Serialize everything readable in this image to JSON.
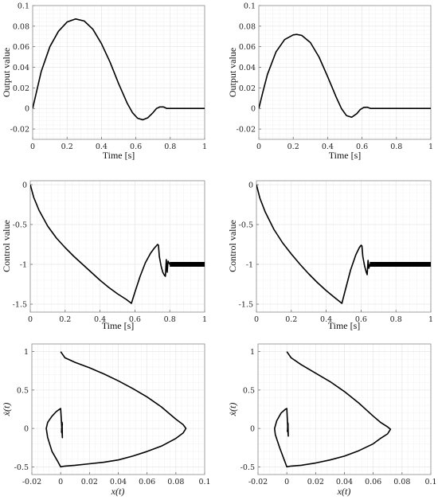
{
  "chart_data": [
    {
      "id": "out-left",
      "type": "line",
      "xlabel": "Time [s]",
      "ylabel": "Output value",
      "xlim": [
        0,
        1
      ],
      "ylim": [
        -0.03,
        0.1
      ],
      "xticks": [
        0,
        0.2,
        0.4,
        0.6,
        0.8,
        1
      ],
      "xtick_labels": [
        "0",
        "0.2",
        "0.4",
        "0.6",
        "0.8",
        "1"
      ],
      "yticks": [
        -0.02,
        0,
        0.02,
        0.04,
        0.06,
        0.08,
        0.1
      ],
      "ytick_labels": [
        "-0.02",
        "0",
        "0.02",
        "0.04",
        "0.06",
        "0.08",
        "0.1"
      ],
      "grid": true,
      "x": [
        0,
        0.025,
        0.05,
        0.1,
        0.15,
        0.2,
        0.25,
        0.3,
        0.35,
        0.4,
        0.45,
        0.5,
        0.55,
        0.58,
        0.61,
        0.64,
        0.67,
        0.7,
        0.72,
        0.74,
        0.76,
        0.78,
        0.8,
        0.9,
        1.0
      ],
      "y": [
        0,
        0.018,
        0.036,
        0.06,
        0.075,
        0.084,
        0.087,
        0.085,
        0.077,
        0.063,
        0.045,
        0.024,
        0.005,
        -0.004,
        -0.0095,
        -0.011,
        -0.009,
        -0.004,
        0.0,
        0.0015,
        0.0015,
        0.0,
        0.0,
        0.0,
        0.0
      ]
    },
    {
      "id": "out-right",
      "type": "line",
      "xlabel": "Time [s]",
      "ylabel": "Output value",
      "xlim": [
        0,
        1
      ],
      "ylim": [
        -0.03,
        0.1
      ],
      "xticks": [
        0,
        0.2,
        0.4,
        0.6,
        0.8,
        1
      ],
      "xtick_labels": [
        "0",
        "0.2",
        "0.4",
        "0.6",
        "0.8",
        "1"
      ],
      "yticks": [
        -0.02,
        0,
        0.02,
        0.04,
        0.06,
        0.08,
        0.1
      ],
      "ytick_labels": [
        "-0.02",
        "0",
        "0.02",
        "0.04",
        "0.06",
        "0.08",
        "0.1"
      ],
      "grid": true,
      "x": [
        0,
        0.025,
        0.05,
        0.1,
        0.15,
        0.2,
        0.22,
        0.25,
        0.3,
        0.35,
        0.4,
        0.45,
        0.48,
        0.51,
        0.54,
        0.57,
        0.59,
        0.61,
        0.63,
        0.65,
        0.8,
        1.0
      ],
      "y": [
        0,
        0.017,
        0.033,
        0.055,
        0.067,
        0.0715,
        0.072,
        0.071,
        0.064,
        0.05,
        0.031,
        0.011,
        0.0,
        -0.007,
        -0.0085,
        -0.005,
        -0.001,
        0.001,
        0.0012,
        0.0,
        0.0,
        0.0
      ]
    },
    {
      "id": "ctrl-left",
      "type": "line",
      "xlabel": "Time [s]",
      "ylabel": "Control value",
      "xlim": [
        0,
        1
      ],
      "ylim": [
        -1.6,
        0.05
      ],
      "xticks": [
        0,
        0.2,
        0.4,
        0.6,
        0.8,
        1
      ],
      "xtick_labels": [
        "0",
        "0.2",
        "0.4",
        "0.6",
        "0.8",
        "1"
      ],
      "yticks": [
        -1.5,
        -1,
        -0.5,
        0
      ],
      "ytick_labels": [
        "-1.5",
        "-1",
        "-0.5",
        "0"
      ],
      "grid": true,
      "x": [
        0,
        0.02,
        0.05,
        0.1,
        0.15,
        0.2,
        0.25,
        0.3,
        0.35,
        0.4,
        0.45,
        0.5,
        0.55,
        0.58,
        0.6,
        0.63,
        0.66,
        0.69,
        0.71,
        0.73,
        0.735,
        0.74,
        0.75,
        0.76,
        0.77,
        0.775,
        0.78,
        0.785,
        0.79,
        0.8,
        1.0
      ],
      "y": [
        0,
        -0.16,
        -0.32,
        -0.52,
        -0.67,
        -0.79,
        -0.9,
        -1.0,
        -1.1,
        -1.2,
        -1.29,
        -1.37,
        -1.44,
        -1.49,
        -1.35,
        -1.15,
        -0.98,
        -0.86,
        -0.8,
        -0.75,
        -0.76,
        -0.9,
        -1.02,
        -1.1,
        -1.14,
        -1.15,
        -0.94,
        -1.1,
        -0.96,
        -1.0,
        -1.0
      ]
    },
    {
      "id": "ctrl-right",
      "type": "line",
      "xlabel": "Time [s]",
      "ylabel": "Control value",
      "xlim": [
        0,
        1
      ],
      "ylim": [
        -1.6,
        0.05
      ],
      "xticks": [
        0,
        0.2,
        0.4,
        0.6,
        0.8,
        1
      ],
      "xtick_labels": [
        "0",
        "0.2",
        "0.4",
        "0.6",
        "0.8",
        "1"
      ],
      "yticks": [
        -1.5,
        -1,
        -0.5,
        0
      ],
      "ytick_labels": [
        "-1.5",
        "-1",
        "-0.5",
        "0"
      ],
      "grid": true,
      "x": [
        0,
        0.02,
        0.05,
        0.1,
        0.15,
        0.2,
        0.25,
        0.3,
        0.35,
        0.4,
        0.45,
        0.49,
        0.51,
        0.54,
        0.57,
        0.59,
        0.6,
        0.605,
        0.61,
        0.62,
        0.63,
        0.635,
        0.64,
        0.645,
        0.65,
        1.0
      ],
      "y": [
        0,
        -0.17,
        -0.34,
        -0.56,
        -0.73,
        -0.87,
        -1.0,
        -1.12,
        -1.23,
        -1.33,
        -1.42,
        -1.49,
        -1.32,
        -1.07,
        -0.88,
        -0.79,
        -0.76,
        -0.77,
        -0.9,
        -1.02,
        -1.1,
        -1.13,
        -0.95,
        -1.05,
        -1.0,
        -1.0
      ]
    },
    {
      "id": "phase-left",
      "type": "line",
      "xlabel": "x(t)",
      "ylabel": "ẋ(t)",
      "xlim": [
        -0.02,
        0.1
      ],
      "ylim": [
        -0.6,
        1.1
      ],
      "xticks": [
        -0.02,
        0,
        0.02,
        0.04,
        0.06,
        0.08,
        0.1
      ],
      "xtick_labels": [
        "-0.02",
        "0",
        "0.02",
        "0.04",
        "0.06",
        "0.08",
        "0.1"
      ],
      "yticks": [
        -0.5,
        0,
        0.5,
        1
      ],
      "ytick_labels": [
        "-0.5",
        "0",
        "0.5",
        "1"
      ],
      "grid": true,
      "x": [
        0,
        0.003,
        0.01,
        0.02,
        0.03,
        0.04,
        0.05,
        0.06,
        0.07,
        0.08,
        0.085,
        0.087,
        0.085,
        0.08,
        0.07,
        0.06,
        0.05,
        0.04,
        0.03,
        0.02,
        0.01,
        0.003,
        0,
        -0.002,
        -0.006,
        -0.009,
        -0.01,
        -0.009,
        -0.006,
        -0.003,
        0.0,
        0.0005,
        0.0012,
        0.001,
        0.0006,
        0.0012,
        0.0008,
        0.0005
      ],
      "y": [
        1.0,
        0.92,
        0.86,
        0.79,
        0.71,
        0.62,
        0.52,
        0.41,
        0.28,
        0.12,
        0.05,
        0.0,
        -0.06,
        -0.13,
        -0.23,
        -0.3,
        -0.36,
        -0.41,
        -0.44,
        -0.46,
        -0.48,
        -0.49,
        -0.5,
        -0.43,
        -0.3,
        -0.12,
        0.0,
        0.08,
        0.16,
        0.22,
        0.26,
        0.1,
        -0.12,
        0.08,
        -0.05,
        0.06,
        -0.02,
        0.0
      ]
    },
    {
      "id": "phase-right",
      "type": "line",
      "xlabel": "x(t)",
      "ylabel": "ẋ(t)",
      "xlim": [
        -0.02,
        0.1
      ],
      "ylim": [
        -0.6,
        1.1
      ],
      "xticks": [
        -0.02,
        0,
        0.02,
        0.04,
        0.06,
        0.08,
        0.1
      ],
      "xtick_labels": [
        "-0.02",
        "0",
        "0.02",
        "0.04",
        "0.06",
        "0.08",
        "0.1"
      ],
      "yticks": [
        -0.5,
        0,
        0.5,
        1
      ],
      "ytick_labels": [
        "-0.5",
        "0",
        "0.5",
        "1"
      ],
      "grid": true,
      "x": [
        0,
        0.003,
        0.01,
        0.02,
        0.03,
        0.04,
        0.05,
        0.06,
        0.065,
        0.07,
        0.072,
        0.07,
        0.065,
        0.06,
        0.05,
        0.04,
        0.03,
        0.02,
        0.01,
        0.003,
        0,
        -0.002,
        -0.005,
        -0.008,
        -0.0085,
        -0.007,
        -0.004,
        -0.001,
        0.0,
        0.0004,
        0.001,
        0.0008,
        0.0004,
        0.0009,
        0.0005
      ],
      "y": [
        1.0,
        0.92,
        0.83,
        0.72,
        0.61,
        0.48,
        0.33,
        0.16,
        0.08,
        0.02,
        -0.01,
        -0.07,
        -0.13,
        -0.2,
        -0.29,
        -0.36,
        -0.41,
        -0.45,
        -0.48,
        -0.49,
        -0.5,
        -0.4,
        -0.25,
        -0.08,
        0.0,
        0.1,
        0.2,
        0.25,
        0.26,
        0.1,
        -0.1,
        0.07,
        -0.04,
        0.05,
        0.0
      ]
    }
  ]
}
